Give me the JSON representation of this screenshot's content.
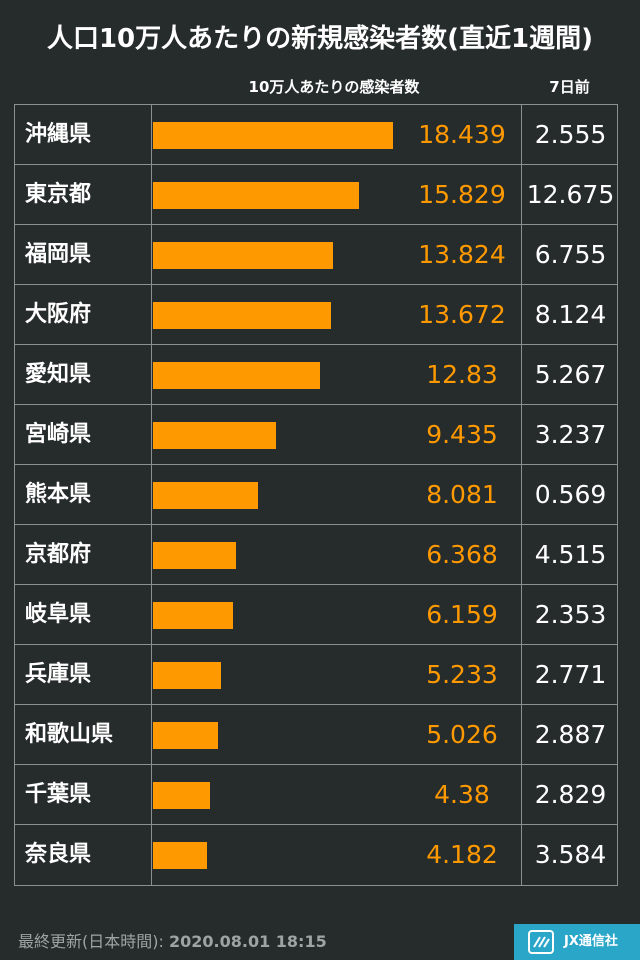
{
  "title": "人口10万人あたりの新規感染者数(直近1週間)",
  "col_headers": {
    "bar": "10万人あたりの感染者数",
    "prev": "7日前"
  },
  "colors": {
    "bar": "#ff9900",
    "background": "#262b2b",
    "accent": "#2aa6c9"
  },
  "chart_data": {
    "type": "bar",
    "orientation": "horizontal",
    "categories": [
      "沖縄県",
      "東京都",
      "福岡県",
      "大阪府",
      "愛知県",
      "宮崎県",
      "熊本県",
      "京都府",
      "岐阜県",
      "兵庫県",
      "和歌山県",
      "千葉県",
      "奈良県"
    ],
    "values": [
      18.439,
      15.829,
      13.824,
      13.672,
      12.83,
      9.435,
      8.081,
      6.368,
      6.159,
      5.233,
      5.026,
      4.38,
      4.182
    ],
    "values_labels": [
      "18.439",
      "15.829",
      "13.824",
      "13.672",
      "12.83",
      "9.435",
      "8.081",
      "6.368",
      "6.159",
      "5.233",
      "5.026",
      "4.38",
      "4.182"
    ],
    "prev_values_labels": [
      "2.555",
      "12.675",
      "6.755",
      "8.124",
      "5.267",
      "3.237",
      "0.569",
      "4.515",
      "2.353",
      "2.771",
      "2.887",
      "2.829",
      "3.584"
    ],
    "series": [
      {
        "name": "10万人あたりの感染者数",
        "values": [
          18.439,
          15.829,
          13.824,
          13.672,
          12.83,
          9.435,
          8.081,
          6.368,
          6.159,
          5.233,
          5.026,
          4.38,
          4.182
        ]
      },
      {
        "name": "7日前",
        "values": [
          2.555,
          12.675,
          6.755,
          8.124,
          5.267,
          3.237,
          0.569,
          4.515,
          2.353,
          2.771,
          2.887,
          2.829,
          3.584
        ]
      }
    ],
    "xlim": [
      0,
      20
    ],
    "grid": false
  },
  "footer": {
    "label": "最終更新(日本時間):",
    "date": "2020.08.01 18:15"
  },
  "brand": {
    "logo_text": "JX通信社",
    "logo_icon": "jx-logo-icon"
  }
}
